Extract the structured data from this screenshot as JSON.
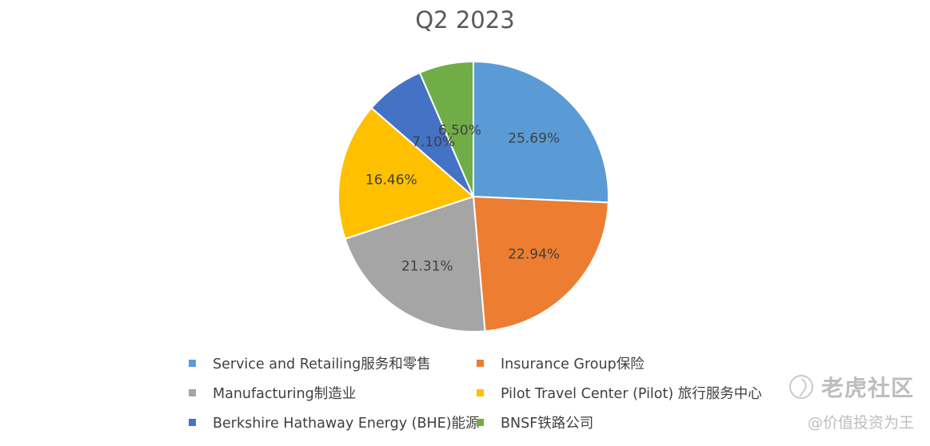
{
  "chart_data": {
    "type": "pie",
    "title": "Q2 2023",
    "categories": [
      "Service and Retailing服务和零售",
      "Insurance Group保险",
      "Manufacturing制造业",
      "Pilot Travel Center (Pilot) 旅行服务中心",
      "Berkshire Hathaway Energy (BHE)能源",
      "BNSF铁路公司"
    ],
    "values": [
      25.69,
      22.94,
      21.31,
      16.46,
      7.1,
      6.5
    ],
    "data_labels": [
      "25.69%",
      "22.94%",
      "21.31%",
      "16.46%",
      "7.10%",
      "6.50%"
    ],
    "colors": [
      "#5b9bd5",
      "#ed7d31",
      "#a5a5a5",
      "#ffc000",
      "#4472c4",
      "#70ad47"
    ],
    "start_angle_deg": 0,
    "direction": "clockwise",
    "legend": "bottom"
  },
  "watermark": {
    "brand": "老虎社区",
    "handle": "@价值投资为王",
    "icon": "tiger-logo-icon"
  }
}
